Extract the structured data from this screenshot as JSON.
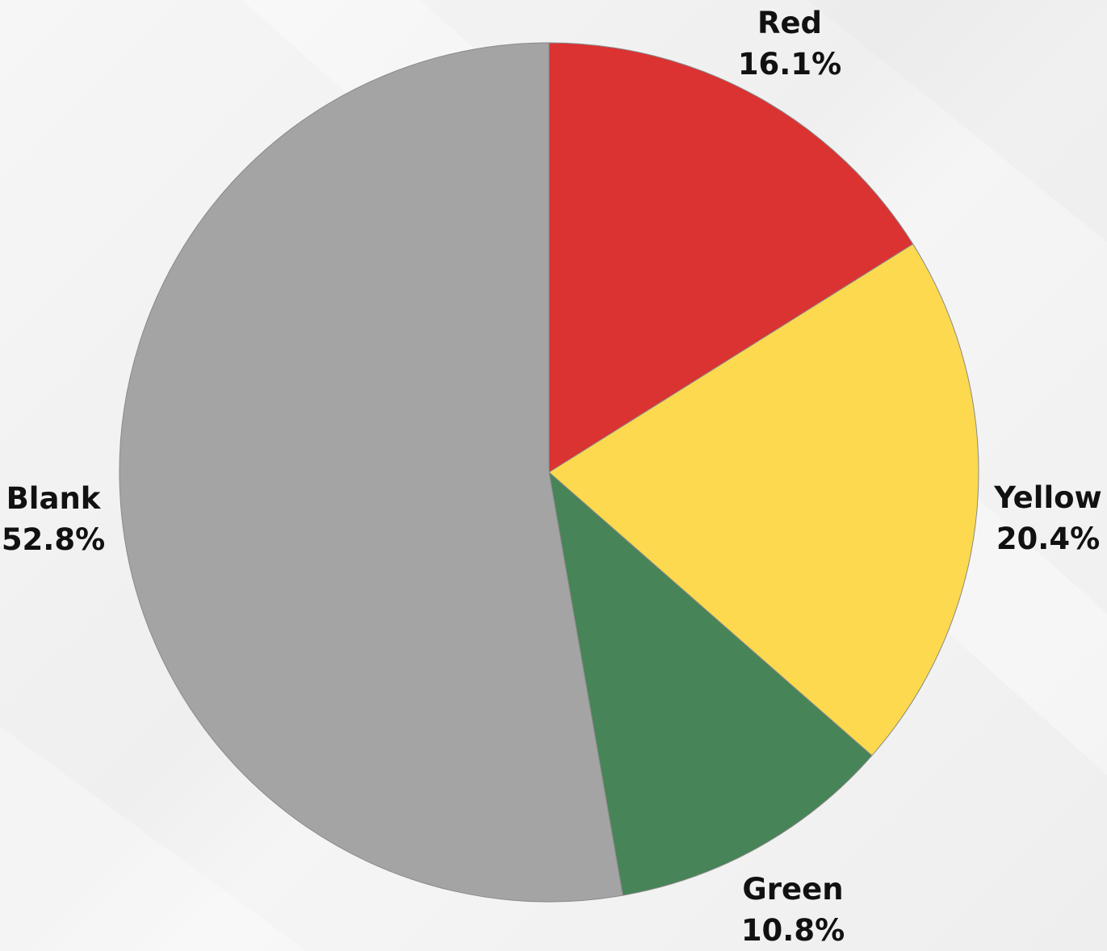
{
  "chart_data": {
    "type": "pie",
    "title": "",
    "slices": [
      {
        "label": "Red",
        "value": 16.1,
        "display": "16.1%",
        "color": "#db3232"
      },
      {
        "label": "Yellow",
        "value": 20.4,
        "display": "20.4%",
        "color": "#fcd94e"
      },
      {
        "label": "Green",
        "value": 10.8,
        "display": "10.8%",
        "color": "#478457"
      },
      {
        "label": "Blank",
        "value": 52.8,
        "display": "52.8%",
        "color": "#a4a4a4"
      }
    ],
    "start_angle": "12 o'clock",
    "direction": "clockwise",
    "legend": "none",
    "labels": "outside"
  }
}
